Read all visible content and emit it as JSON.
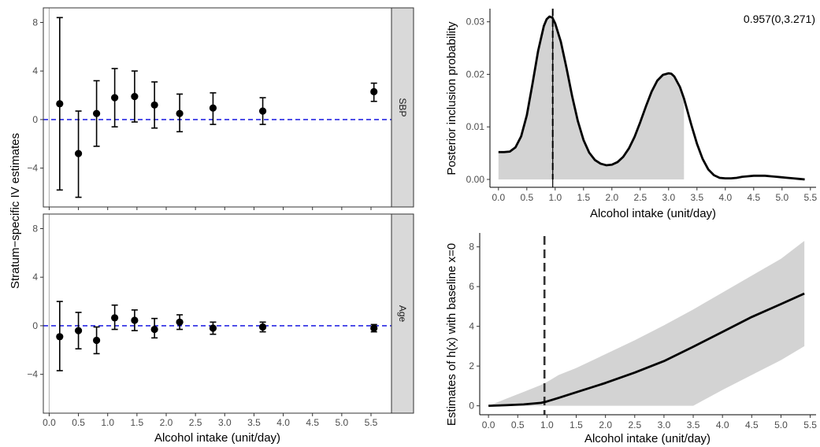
{
  "figure": {
    "left_ylabel": "Stratum−specific IV estimates",
    "left_xlabel": "Alcohol intake (unit/day)",
    "tr_ylabel": "Posterior inclusion probability",
    "tr_xlabel": "Alcohol intake (unit/day)",
    "tr_annotation": "0.957(0,3.271)",
    "br_ylabel": "Estimates of h(x) with baseline x=0",
    "br_xlabel": "Alcohol intake (unit/day)"
  },
  "chart_data": [
    {
      "type": "scatter",
      "panel": "SBP",
      "strip_label": "SBP",
      "xlabel": "Alcohol intake (unit/day)",
      "ylabel": "Stratum−specific IV estimates",
      "xlim": [
        -0.1,
        5.85
      ],
      "ylim": [
        -7.2,
        9.2
      ],
      "x_ticks": [
        0.0,
        0.5,
        1.0,
        1.5,
        2.0,
        2.5,
        3.0,
        3.5,
        4.0,
        4.5,
        5.0,
        5.5
      ],
      "y_ticks": [
        -4,
        0,
        4,
        8
      ],
      "y_tick_labels": [
        "−4",
        "0",
        "4",
        "8"
      ],
      "reference_line_y": 0,
      "vertical_line_x": 0,
      "points": [
        {
          "x": 0.18,
          "y": 1.3,
          "lo": -5.8,
          "hi": 8.4
        },
        {
          "x": 0.5,
          "y": -2.8,
          "lo": -6.4,
          "hi": 0.7
        },
        {
          "x": 0.81,
          "y": 0.5,
          "lo": -2.2,
          "hi": 3.2
        },
        {
          "x": 1.12,
          "y": 1.8,
          "lo": -0.6,
          "hi": 4.2
        },
        {
          "x": 1.46,
          "y": 1.9,
          "lo": -0.2,
          "hi": 4.0
        },
        {
          "x": 1.8,
          "y": 1.2,
          "lo": -0.7,
          "hi": 3.1
        },
        {
          "x": 2.23,
          "y": 0.5,
          "lo": -1.0,
          "hi": 2.1
        },
        {
          "x": 2.8,
          "y": 0.95,
          "lo": -0.4,
          "hi": 2.2
        },
        {
          "x": 3.65,
          "y": 0.7,
          "lo": -0.4,
          "hi": 1.8
        },
        {
          "x": 5.55,
          "y": 2.3,
          "lo": 1.5,
          "hi": 3.0
        }
      ]
    },
    {
      "type": "scatter",
      "panel": "Age",
      "strip_label": "Age",
      "xlabel": "Alcohol intake (unit/day)",
      "ylabel": "Stratum−specific IV estimates",
      "xlim": [
        -0.1,
        5.85
      ],
      "ylim": [
        -7.2,
        9.2
      ],
      "x_ticks": [
        0.0,
        0.5,
        1.0,
        1.5,
        2.0,
        2.5,
        3.0,
        3.5,
        4.0,
        4.5,
        5.0,
        5.5
      ],
      "x_tick_labels": [
        "0.0",
        "0.5",
        "1.0",
        "1.5",
        "2.0",
        "2.5",
        "3.0",
        "3.5",
        "4.0",
        "4.5",
        "5.0",
        "5.5"
      ],
      "y_ticks": [
        -4,
        0,
        4,
        8
      ],
      "y_tick_labels": [
        "−4",
        "0",
        "4",
        "8"
      ],
      "reference_line_y": 0,
      "vertical_line_x": 0,
      "points": [
        {
          "x": 0.18,
          "y": -0.9,
          "lo": -3.7,
          "hi": 2.0
        },
        {
          "x": 0.5,
          "y": -0.4,
          "lo": -1.9,
          "hi": 1.1
        },
        {
          "x": 0.81,
          "y": -1.2,
          "lo": -2.3,
          "hi": -0.1
        },
        {
          "x": 1.12,
          "y": 0.65,
          "lo": -0.3,
          "hi": 1.7
        },
        {
          "x": 1.46,
          "y": 0.45,
          "lo": -0.4,
          "hi": 1.3
        },
        {
          "x": 1.8,
          "y": -0.3,
          "lo": -1.0,
          "hi": 0.6
        },
        {
          "x": 2.23,
          "y": 0.3,
          "lo": -0.3,
          "hi": 0.9
        },
        {
          "x": 2.8,
          "y": -0.2,
          "lo": -0.7,
          "hi": 0.3
        },
        {
          "x": 3.65,
          "y": -0.1,
          "lo": -0.5,
          "hi": 0.3
        },
        {
          "x": 5.55,
          "y": -0.2,
          "lo": -0.5,
          "hi": 0.1
        }
      ]
    },
    {
      "type": "area",
      "panel": "posterior",
      "xlabel": "Alcohol intake (unit/day)",
      "ylabel": "Posterior inclusion probability",
      "annotation": "0.957(0,3.271)",
      "xlim": [
        -0.15,
        5.6
      ],
      "ylim": [
        -0.0015,
        0.0325
      ],
      "x_ticks": [
        0.0,
        0.5,
        1.0,
        1.5,
        2.0,
        2.5,
        3.0,
        3.5,
        4.0,
        4.5,
        5.0,
        5.5
      ],
      "x_tick_labels": [
        "0.0",
        "0.5",
        "1.0",
        "1.5",
        "2.0",
        "2.5",
        "3.0",
        "3.5",
        "4.0",
        "4.5",
        "5.0",
        "5.5"
      ],
      "y_ticks": [
        0.0,
        0.01,
        0.02,
        0.03
      ],
      "y_tick_labels": [
        "0.00",
        "0.01",
        "0.02",
        "0.03"
      ],
      "dashed_vline_x": 0.957,
      "solid_vline_x": 0.957,
      "shaded_interval": [
        0,
        3.271
      ],
      "x": [
        0.0,
        0.1,
        0.2,
        0.3,
        0.4,
        0.5,
        0.6,
        0.7,
        0.8,
        0.85,
        0.9,
        0.95,
        1.0,
        1.1,
        1.2,
        1.3,
        1.4,
        1.5,
        1.6,
        1.7,
        1.8,
        1.9,
        2.0,
        2.1,
        2.2,
        2.3,
        2.4,
        2.5,
        2.6,
        2.7,
        2.8,
        2.9,
        3.0,
        3.05,
        3.1,
        3.2,
        3.271,
        3.3,
        3.4,
        3.5,
        3.6,
        3.7,
        3.8,
        3.9,
        4.0,
        4.1,
        4.2,
        4.3,
        4.4,
        4.5,
        4.6,
        4.7,
        4.8,
        4.9,
        5.0,
        5.1,
        5.2,
        5.3,
        5.4
      ],
      "y": [
        0.0052,
        0.0052,
        0.0053,
        0.0061,
        0.0082,
        0.0122,
        0.0182,
        0.0245,
        0.0292,
        0.0305,
        0.031,
        0.0308,
        0.0297,
        0.0262,
        0.0212,
        0.0158,
        0.0111,
        0.0075,
        0.0051,
        0.0037,
        0.003,
        0.0027,
        0.0028,
        0.0033,
        0.0043,
        0.0059,
        0.0081,
        0.0109,
        0.0139,
        0.0167,
        0.0188,
        0.0199,
        0.0202,
        0.0201,
        0.0196,
        0.0176,
        0.0154,
        0.0143,
        0.0104,
        0.0068,
        0.0039,
        0.0019,
        0.0008,
        0.0003,
        0.0002,
        0.0002,
        0.0003,
        0.0005,
        0.0006,
        0.0007,
        0.0007,
        0.0007,
        0.0006,
        0.0005,
        0.0004,
        0.0003,
        0.0002,
        0.0001,
        0.0
      ]
    },
    {
      "type": "line",
      "panel": "h(x)",
      "xlabel": "Alcohol intake (unit/day)",
      "ylabel": "Estimates of h(x) with baseline x=0",
      "xlim": [
        -0.15,
        5.6
      ],
      "ylim": [
        -0.45,
        8.7
      ],
      "x_ticks": [
        0.0,
        0.5,
        1.0,
        1.5,
        2.0,
        2.5,
        3.0,
        3.5,
        4.0,
        4.5,
        5.0,
        5.5
      ],
      "x_tick_labels": [
        "0.0",
        "0.5",
        "1.0",
        "1.5",
        "2.0",
        "2.5",
        "3.0",
        "3.5",
        "4.0",
        "4.5",
        "5.0",
        "5.5"
      ],
      "y_ticks": [
        0,
        2,
        4,
        6,
        8
      ],
      "y_tick_labels": [
        "0",
        "2",
        "4",
        "6",
        "8"
      ],
      "dashed_vline_x": 0.957,
      "x": [
        0.0,
        0.3,
        0.6,
        0.9,
        1.0,
        1.2,
        1.5,
        2.0,
        2.5,
        3.0,
        3.5,
        4.0,
        4.5,
        5.0,
        5.4
      ],
      "y": [
        0.0,
        0.03,
        0.07,
        0.15,
        0.22,
        0.4,
        0.68,
        1.15,
        1.67,
        2.25,
        2.97,
        3.72,
        4.47,
        5.12,
        5.65
      ],
      "ci_lower": [
        0.0,
        0.0,
        0.0,
        0.0,
        0.0,
        0.0,
        0.0,
        0.0,
        0.0,
        0.0,
        0.0,
        0.8,
        1.55,
        2.3,
        3.0
      ],
      "ci_upper": [
        0.0,
        0.35,
        0.7,
        1.05,
        1.2,
        1.55,
        1.9,
        2.6,
        3.3,
        4.05,
        4.85,
        5.7,
        6.55,
        7.4,
        8.3
      ]
    }
  ]
}
